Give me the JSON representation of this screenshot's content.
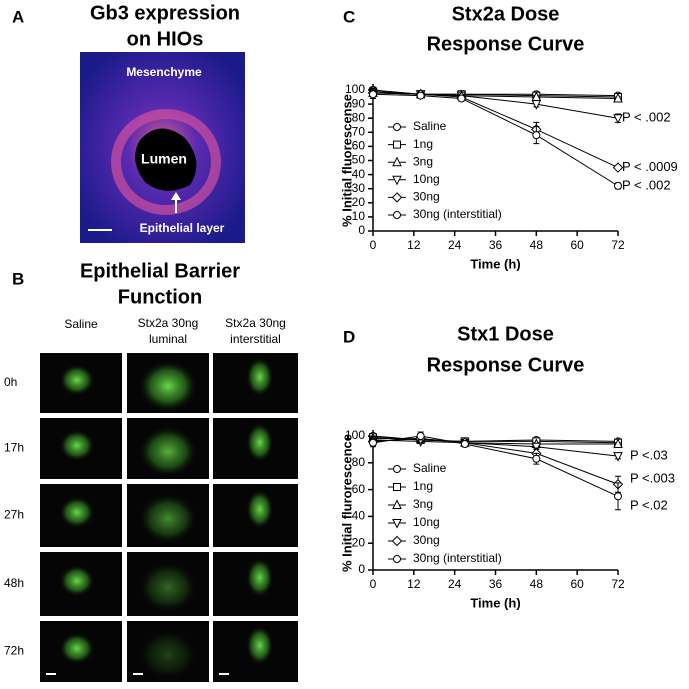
{
  "panel_labels": [
    "A",
    "B",
    "C",
    "D"
  ],
  "panel_a": {
    "title": [
      "Gb3 expression",
      "on HIOs"
    ],
    "labels": [
      "Mesenchyme",
      "Lumen",
      "Epithelial layer"
    ]
  },
  "panel_b": {
    "title": [
      "Epithelial Barrier",
      "Function"
    ],
    "columns": [
      [
        "Saline"
      ],
      [
        "Stx2a 30ng",
        "luminal"
      ],
      [
        "Stx2a 30ng",
        "interstitial"
      ]
    ],
    "rows": [
      "0h",
      "17h",
      "27h",
      "48h",
      "72h"
    ]
  },
  "chart_data": [
    {
      "type": "line",
      "title": [
        "Stx2a Dose",
        "Response Curve"
      ],
      "xlabel": "Time (h)",
      "ylabel": "% Initial fluorescense",
      "x": [
        0,
        14,
        26,
        48,
        72
      ],
      "xlim": [
        0,
        72
      ],
      "xticks": [
        0,
        12,
        24,
        36,
        48,
        60,
        72
      ],
      "ylim": [
        0,
        100
      ],
      "yticks": [
        0,
        10,
        20,
        30,
        40,
        50,
        60,
        70,
        80,
        90,
        100
      ],
      "series": [
        {
          "name": "Saline",
          "marker": "circle",
          "color": "#000000",
          "values": [
            100,
            97,
            97,
            97,
            96
          ],
          "errors": [
            2,
            1,
            1,
            1,
            1
          ]
        },
        {
          "name": "1ng",
          "marker": "square",
          "color": "#000000",
          "values": [
            99,
            97,
            97,
            96,
            95
          ],
          "errors": [
            2,
            1,
            1,
            1,
            1
          ]
        },
        {
          "name": "3ng",
          "marker": "triangle-up",
          "color": "#000000",
          "values": [
            98,
            97,
            96,
            95,
            94
          ],
          "errors": [
            2,
            1,
            1,
            1,
            1
          ]
        },
        {
          "name": "10ng",
          "marker": "triangle-down",
          "color": "#000000",
          "values": [
            98,
            97,
            96,
            90,
            80
          ],
          "errors": [
            2,
            1,
            2,
            2,
            3
          ]
        },
        {
          "name": "30ng",
          "marker": "diamond",
          "color": "#000000",
          "values": [
            98,
            97,
            95,
            72,
            45
          ],
          "errors": [
            3,
            1,
            2,
            5,
            1
          ]
        },
        {
          "name": "30ng (interstitial)",
          "marker": "circle",
          "color": "#000000",
          "values": [
            97,
            96,
            94,
            68,
            32
          ],
          "errors": [
            3,
            1,
            2,
            6,
            2
          ]
        }
      ],
      "annotations": [
        "P < .002",
        "P < .0009",
        "P < .002"
      ]
    },
    {
      "type": "line",
      "title": [
        "Stx1 Dose",
        "Response Curve"
      ],
      "xlabel": "Time (h)",
      "ylabel": "% Initial flurorescence",
      "x": [
        0,
        14,
        27,
        48,
        72
      ],
      "xlim": [
        0,
        72
      ],
      "xticks": [
        0,
        12,
        24,
        36,
        48,
        60,
        72
      ],
      "ylim": [
        0,
        100
      ],
      "yticks": [
        0,
        20,
        40,
        60,
        80,
        100
      ],
      "series": [
        {
          "name": "Saline",
          "marker": "circle",
          "color": "#000000",
          "values": [
            100,
            97,
            96,
            97,
            96
          ],
          "errors": [
            2,
            1,
            1,
            1,
            1
          ]
        },
        {
          "name": "1ng",
          "marker": "square",
          "color": "#000000",
          "values": [
            99,
            97,
            96,
            96,
            95
          ],
          "errors": [
            2,
            1,
            1,
            1,
            1
          ]
        },
        {
          "name": "3ng",
          "marker": "triangle-up",
          "color": "#000000",
          "values": [
            98,
            98,
            95,
            94,
            94
          ],
          "errors": [
            2,
            1,
            1,
            1,
            1
          ]
        },
        {
          "name": "10ng",
          "marker": "triangle-down",
          "color": "#000000",
          "values": [
            97,
            96,
            95,
            92,
            85
          ],
          "errors": [
            2,
            1,
            1,
            2,
            2
          ]
        },
        {
          "name": "30ng",
          "marker": "diamond",
          "color": "#000000",
          "values": [
            96,
            98,
            95,
            87,
            64
          ],
          "errors": [
            3,
            2,
            2,
            4,
            6
          ]
        },
        {
          "name": "30ng (interstitial)",
          "marker": "circle",
          "color": "#000000",
          "values": [
            95,
            100,
            94,
            83,
            55
          ],
          "errors": [
            3,
            3,
            2,
            4,
            10
          ]
        }
      ],
      "annotations": [
        "P <.03",
        "P <.003",
        "P <.02"
      ]
    }
  ]
}
